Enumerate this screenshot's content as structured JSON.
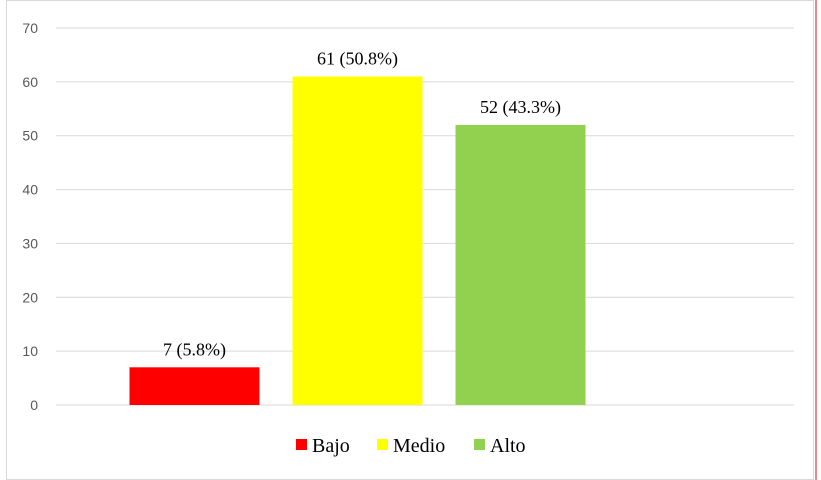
{
  "chart_data": {
    "type": "bar",
    "title": "",
    "xlabel": "",
    "ylabel": "",
    "categories": [
      "Bajo",
      "Medio",
      "Alto"
    ],
    "values": [
      7,
      61,
      52
    ],
    "data_labels": [
      "7 (5.8%)",
      "61 (50.8%)",
      "52 (43.3%)"
    ],
    "colors": [
      "#ff0000",
      "#ffff00",
      "#92d050"
    ],
    "ylim": [
      0,
      70
    ],
    "yticks": [
      0,
      10,
      20,
      30,
      40,
      50,
      60,
      70
    ],
    "grid": true,
    "legend": {
      "position": "bottom",
      "entries": [
        "Bajo",
        "Medio",
        "Alto"
      ]
    }
  }
}
